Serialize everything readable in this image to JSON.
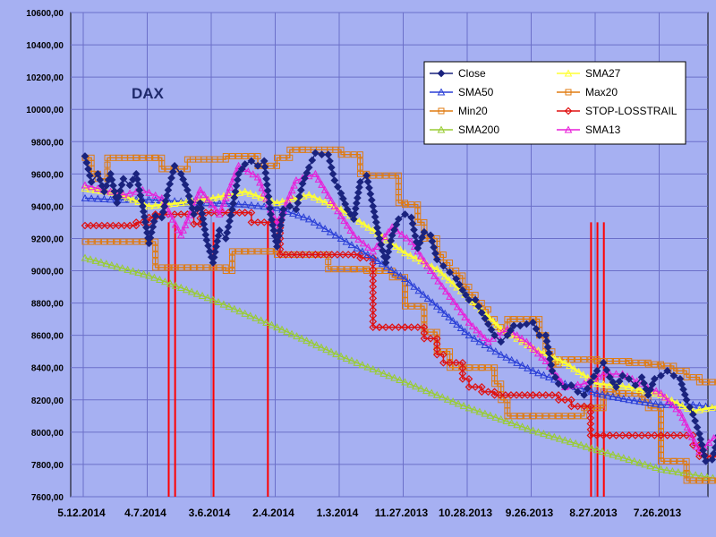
{
  "chart_data": {
    "type": "line",
    "title": "DAX",
    "xlabel": "",
    "ylabel": "",
    "ylim": [
      7600,
      10600
    ],
    "y_ticks": [
      "7600,00",
      "7800,00",
      "8000,00",
      "8200,00",
      "8400,00",
      "8600,00",
      "8800,00",
      "9000,00",
      "9200,00",
      "9400,00",
      "9600,00",
      "9800,00",
      "10000,00",
      "10200,00",
      "10400,00",
      "10600,00"
    ],
    "x_ticks": [
      "5.12.2014",
      "4.7.2014",
      "3.6.2014",
      "2.4.2014",
      "1.3.2014",
      "11.27.2013",
      "10.28.2013",
      "9.26.2013",
      "8.27.2013",
      "7.26.2013"
    ],
    "x_axis_reversed": true,
    "grid": true,
    "legend_position": "top-right",
    "stop_loss_spikes_at_tick": [
      1.0,
      1.1,
      1.7,
      2.55,
      7.6,
      7.7,
      7.8
    ],
    "series": [
      {
        "name": "Close",
        "color": "#1a237e",
        "marker": "diamond",
        "x": [
          0,
          0.1,
          0.2,
          0.3,
          0.4,
          0.5,
          0.6,
          0.7,
          0.8,
          0.9,
          1.0,
          1.1,
          1.2,
          1.3,
          1.4,
          1.5,
          1.6,
          1.7,
          1.8,
          1.9,
          2.0,
          2.1,
          2.2,
          2.3,
          2.4,
          2.5,
          2.6,
          2.7,
          2.8,
          2.9,
          3.0,
          3.1,
          3.2,
          3.3,
          3.4,
          3.5,
          3.6,
          3.7,
          3.8,
          3.9,
          4.0,
          4.1,
          4.2,
          4.3,
          4.4,
          4.5,
          4.6,
          4.7,
          4.8,
          4.9,
          5.0,
          5.1,
          5.2,
          5.3,
          5.4,
          5.5,
          5.6,
          5.7,
          5.8,
          5.9,
          6.0,
          6.1,
          6.2,
          6.3,
          6.4,
          6.5,
          6.6,
          6.7,
          6.8,
          6.9,
          7.0,
          7.1,
          7.2,
          7.3,
          7.4,
          7.5,
          7.6,
          7.7,
          7.8,
          7.9,
          8.0,
          8.1,
          8.2,
          8.3,
          8.4,
          8.5,
          8.6,
          8.7,
          8.8,
          8.9,
          9.0,
          9.1,
          9.2,
          9.3,
          9.4,
          9.5,
          9.6,
          9.7,
          9.8,
          9.9
        ],
        "values": [
          9710,
          9550,
          9600,
          9490,
          9600,
          9420,
          9570,
          9530,
          9600,
          9400,
          9170,
          9340,
          9330,
          9500,
          9650,
          9600,
          9500,
          9350,
          9420,
          9190,
          9050,
          9250,
          9200,
          9380,
          9600,
          9660,
          9680,
          9650,
          9680,
          9350,
          9150,
          9380,
          9400,
          9380,
          9540,
          9640,
          9730,
          9720,
          9720,
          9560,
          9480,
          9380,
          9320,
          9550,
          9590,
          9400,
          9200,
          9050,
          9220,
          9320,
          9350,
          9330,
          9140,
          9240,
          9220,
          9070,
          9030,
          8990,
          8950,
          8880,
          8820,
          8820,
          8740,
          8670,
          8600,
          8560,
          8600,
          8660,
          8660,
          8670,
          8680,
          8600,
          8600,
          8380,
          8300,
          8280,
          8290,
          8250,
          8230,
          8310,
          8380,
          8430,
          8340,
          8280,
          8350,
          8330,
          8290,
          8340,
          8230,
          8330,
          8350,
          8380,
          8350,
          8330,
          8200,
          8110,
          7990,
          7820,
          7830,
          7980
        ]
      },
      {
        "name": "SMA27",
        "color": "#ffff33",
        "marker": "triangle",
        "x": [
          0,
          0.5,
          1.0,
          1.5,
          2.0,
          2.5,
          3.0,
          3.5,
          4.0,
          4.5,
          5.0,
          5.5,
          6.0,
          6.5,
          7.0,
          7.5,
          8.0,
          8.5,
          9.0,
          9.5,
          9.9
        ],
        "values": [
          9510,
          9480,
          9400,
          9420,
          9450,
          9490,
          9420,
          9470,
          9380,
          9250,
          9110,
          9010,
          8830,
          8640,
          8520,
          8430,
          8300,
          8280,
          8230,
          8130,
          8160
        ]
      },
      {
        "name": "SMA50",
        "color": "#2a3fd6",
        "marker": "triangle",
        "x": [
          0,
          0.5,
          1.0,
          1.5,
          2.0,
          2.5,
          3.0,
          3.5,
          4.0,
          4.5,
          5.0,
          5.5,
          6.0,
          6.5,
          7.0,
          7.5,
          8.0,
          8.5,
          9.0,
          9.5,
          9.9
        ],
        "values": [
          9450,
          9440,
          9440,
          9430,
          9420,
          9410,
          9390,
          9320,
          9200,
          9080,
          8950,
          8780,
          8600,
          8480,
          8380,
          8300,
          8240,
          8200,
          8170,
          8170,
          8150
        ]
      },
      {
        "name": "Max20",
        "color": "#e07b10",
        "marker": "square",
        "x": [
          0,
          0.1,
          0.2,
          0.35,
          0.8,
          1.1,
          1.2,
          1.6,
          2.2,
          2.6,
          2.7,
          3.0,
          3.2,
          3.4,
          4.0,
          4.3,
          4.4,
          4.9,
          5.0,
          5.2,
          5.3,
          5.5,
          5.6,
          5.7,
          5.8,
          5.9,
          6.0,
          6.1,
          6.2,
          6.3,
          6.4,
          6.5,
          6.6,
          6.7,
          7.0,
          7.1,
          7.2,
          7.3,
          7.4,
          7.6,
          8.0,
          8.2,
          8.5,
          8.8,
          9.0,
          9.2,
          9.4,
          9.6,
          9.9
        ],
        "values": [
          9700,
          9600,
          9570,
          9700,
          9700,
          9700,
          9630,
          9690,
          9710,
          9710,
          9650,
          9700,
          9750,
          9750,
          9720,
          9600,
          9590,
          9420,
          9410,
          9300,
          9200,
          9100,
          9050,
          9000,
          8970,
          8900,
          8850,
          8800,
          8760,
          8700,
          8650,
          8620,
          8700,
          8700,
          8700,
          8600,
          8500,
          8420,
          8450,
          8450,
          8440,
          8440,
          8430,
          8420,
          8410,
          8380,
          8340,
          8310,
          8310
        ]
      },
      {
        "name": "Min20",
        "color": "#e07b10",
        "marker": "square",
        "x": [
          0,
          0.5,
          0.9,
          1.1,
          1.3,
          1.6,
          2.0,
          2.2,
          2.3,
          2.5,
          2.9,
          3.0,
          3.6,
          3.8,
          4.2,
          4.4,
          4.6,
          4.8,
          5.0,
          5.3,
          5.5,
          5.7,
          6.0,
          6.2,
          6.4,
          6.5,
          6.6,
          6.8,
          7.0,
          7.4,
          7.6,
          7.8,
          8.0,
          8.1,
          8.3,
          8.4,
          8.6,
          8.7,
          8.8,
          9.0,
          9.2,
          9.4,
          9.6,
          9.9
        ],
        "values": [
          9180,
          9180,
          9180,
          9020,
          9020,
          9020,
          9020,
          9000,
          9120,
          9120,
          9120,
          9100,
          9100,
          9010,
          9010,
          9000,
          9000,
          8960,
          8780,
          8620,
          8500,
          8400,
          8400,
          8400,
          8300,
          8200,
          8100,
          8100,
          8100,
          8100,
          8100,
          8150,
          8150,
          8250,
          8240,
          8240,
          8240,
          8200,
          8150,
          7820,
          7820,
          7700,
          7700,
          7700
        ]
      },
      {
        "name": "STOP-LOSSTRAIL",
        "color": "#e01010",
        "marker": "diamond",
        "x": [
          0,
          0.7,
          0.8,
          1.0,
          1.1,
          1.6,
          1.7,
          1.8,
          2.5,
          2.6,
          3.0,
          3.05,
          3.4,
          3.6,
          4.2,
          4.3,
          4.5,
          4.6,
          5.0,
          5.3,
          5.5,
          5.6,
          5.9,
          6.0,
          6.2,
          6.4,
          7.0,
          7.4,
          7.5,
          7.6,
          7.9,
          8.2,
          8.5,
          9.0,
          9.5,
          9.6,
          9.8,
          9.9
        ],
        "values": [
          9280,
          9280,
          9300,
          9330,
          9350,
          9350,
          9290,
          9360,
          9360,
          9300,
          9300,
          9100,
          9100,
          9100,
          9100,
          9080,
          8650,
          8650,
          8650,
          8580,
          8480,
          8430,
          8330,
          8280,
          8250,
          8230,
          8230,
          8200,
          8200,
          8160,
          7980,
          7980,
          7980,
          7980,
          7920,
          7850,
          7850,
          7850
        ]
      },
      {
        "name": "SMA200",
        "color": "#99cc33",
        "marker": "triangle",
        "x": [
          0,
          1.0,
          2.0,
          3.0,
          4.0,
          5.0,
          6.0,
          7.0,
          8.0,
          9.0,
          9.9
        ],
        "values": [
          9080,
          8970,
          8820,
          8650,
          8470,
          8310,
          8150,
          8010,
          7890,
          7770,
          7710
        ]
      },
      {
        "name": "SMA13",
        "color": "#e81fd8",
        "marker": "triangle",
        "x": [
          0,
          0.3,
          0.6,
          0.9,
          1.2,
          1.5,
          1.8,
          2.1,
          2.4,
          2.7,
          3.0,
          3.3,
          3.6,
          3.9,
          4.2,
          4.5,
          4.8,
          5.1,
          5.4,
          5.7,
          6.0,
          6.3,
          6.6,
          6.9,
          7.2,
          7.5,
          7.8,
          8.1,
          8.4,
          8.7,
          9.0,
          9.3,
          9.6,
          9.9
        ],
        "values": [
          9530,
          9500,
          9470,
          9500,
          9450,
          9220,
          9500,
          9350,
          9650,
          9580,
          9280,
          9560,
          9600,
          9400,
          9220,
          9120,
          9270,
          9180,
          9000,
          8840,
          8680,
          8560,
          8640,
          8560,
          8440,
          8280,
          8300,
          8360,
          8360,
          8300,
          8240,
          8120,
          7880,
          7990
        ]
      }
    ]
  },
  "legend": {
    "items": [
      {
        "label": "Close",
        "color": "#1a237e",
        "marker": "diamond"
      },
      {
        "label": "SMA27",
        "color": "#ffff33",
        "marker": "triangle"
      },
      {
        "label": "SMA50",
        "color": "#2a3fd6",
        "marker": "triangle"
      },
      {
        "label": "Max20",
        "color": "#e07b10",
        "marker": "square"
      },
      {
        "label": "Min20",
        "color": "#e07b10",
        "marker": "square"
      },
      {
        "label": "STOP-LOSSTRAIL",
        "color": "#e01010",
        "marker": "diamond"
      },
      {
        "label": "SMA200",
        "color": "#99cc33",
        "marker": "triangle"
      },
      {
        "label": "SMA13",
        "color": "#e81fd8",
        "marker": "triangle"
      }
    ]
  },
  "colors": {
    "background": "#a6b0f2",
    "plot_area": "#a6b0f2",
    "grid": "#6b6fc9",
    "legend_bg": "#ffffff",
    "stop_spike": "#ff0000"
  }
}
